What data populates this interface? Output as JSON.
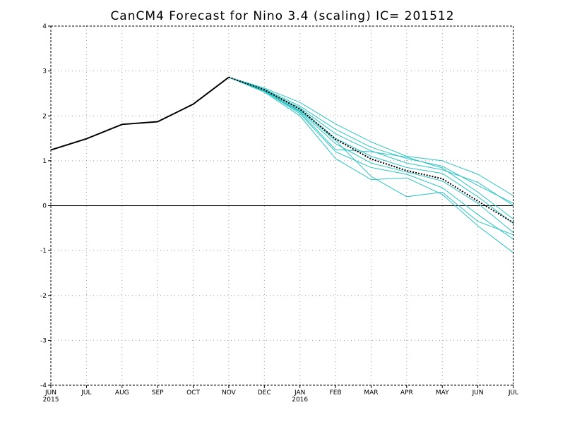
{
  "chart_data": {
    "type": "line",
    "title": "CanCM4 Forecast for Nino 3.4 (scaling)  IC= 201512",
    "x": [
      "JUN",
      "JUL",
      "AUG",
      "SEP",
      "OCT",
      "NOV",
      "DEC",
      "JAN",
      "FEB",
      "MAR",
      "APR",
      "MAY",
      "JUN",
      "JUL"
    ],
    "x_year_labels": [
      {
        "index": 0,
        "label": "2015"
      },
      {
        "index": 7,
        "label": "2016"
      }
    ],
    "ylim": [
      -4,
      4
    ],
    "yticks": [
      "-4",
      "-3",
      "-2",
      "-1",
      "0",
      "1",
      "2",
      "3",
      "4"
    ],
    "grid": true,
    "zero_line": true,
    "colors": {
      "observed": "#000000",
      "members": "#2ec4c4",
      "ensemble_mean": "#000000"
    },
    "observed": {
      "x_index": [
        0,
        1,
        2,
        3,
        4,
        5
      ],
      "values": [
        1.24,
        1.49,
        1.81,
        1.87,
        2.26,
        2.86
      ]
    },
    "ensemble_mean": {
      "x_index": [
        5,
        6,
        7,
        8,
        9,
        10,
        11,
        12,
        13
      ],
      "values": [
        2.86,
        2.58,
        2.15,
        1.48,
        1.04,
        0.78,
        0.6,
        0.1,
        -0.38
      ]
    },
    "members": {
      "x_index": [
        5,
        6,
        7,
        8,
        9,
        10,
        11,
        12,
        13
      ],
      "series": [
        [
          2.86,
          2.62,
          2.3,
          1.82,
          1.42,
          1.1,
          1.0,
          0.7,
          0.22
        ],
        [
          2.86,
          2.6,
          2.22,
          1.7,
          1.3,
          1.05,
          0.88,
          0.45,
          0.05
        ],
        [
          2.86,
          2.58,
          2.18,
          1.6,
          1.22,
          0.95,
          0.8,
          0.52,
          0.0
        ],
        [
          2.86,
          2.57,
          2.15,
          1.5,
          1.1,
          0.85,
          0.72,
          0.2,
          -0.4
        ],
        [
          2.86,
          2.56,
          2.1,
          1.38,
          0.95,
          0.75,
          0.55,
          0.05,
          -0.6
        ],
        [
          2.86,
          2.55,
          2.05,
          1.2,
          0.85,
          0.7,
          0.4,
          -0.2,
          -0.75
        ],
        [
          2.86,
          2.54,
          2.12,
          1.45,
          0.65,
          0.2,
          0.3,
          -0.35,
          -0.65
        ],
        [
          2.86,
          2.53,
          2.0,
          1.05,
          0.58,
          0.62,
          0.25,
          -0.45,
          -1.05
        ],
        [
          2.86,
          2.55,
          2.08,
          1.25,
          1.2,
          1.08,
          0.84,
          0.3,
          -0.3
        ]
      ]
    }
  }
}
